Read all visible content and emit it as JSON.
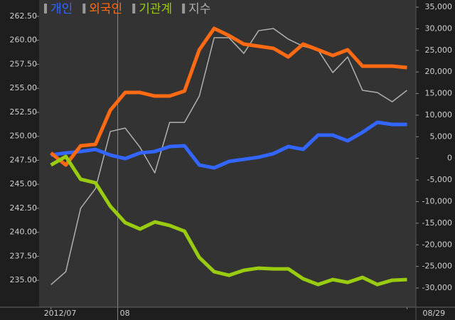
{
  "chart_data": {
    "type": "line",
    "x": [
      0,
      1,
      2,
      3,
      4,
      5,
      6,
      7,
      8,
      9,
      10,
      11,
      12,
      13,
      14,
      15,
      16,
      17,
      18,
      19,
      20,
      21,
      22,
      23,
      24
    ],
    "xlim": [
      -0.8,
      24.6
    ],
    "xticks": [
      {
        "value": 0,
        "label": "2012/07"
      },
      {
        "value": 4.5,
        "label": "08"
      },
      {
        "value": 24,
        "label": "08/29"
      }
    ],
    "ylim": [
      232.2,
      264.2
    ],
    "yticks": [
      {
        "value": 235,
        "label": "235.00"
      },
      {
        "value": 237.5,
        "label": "237.50"
      },
      {
        "value": 240,
        "label": "240.00"
      },
      {
        "value": 242.5,
        "label": "242.50"
      },
      {
        "value": 245,
        "label": "245.00"
      },
      {
        "value": 247.5,
        "label": "247.50"
      },
      {
        "value": 250,
        "label": "250.00"
      },
      {
        "value": 252.5,
        "label": "252.50"
      },
      {
        "value": 255,
        "label": "255.00"
      },
      {
        "value": 257.5,
        "label": "257.50"
      },
      {
        "value": 260,
        "label": "260.00"
      },
      {
        "value": 262.5,
        "label": "262.50"
      }
    ],
    "y2lim": [
      -34440,
      36650
    ],
    "y2ticks": [
      {
        "value": -30000,
        "label": "-30,000"
      },
      {
        "value": -25000,
        "label": "-25,000"
      },
      {
        "value": -20000,
        "label": "-20,000"
      },
      {
        "value": -15000,
        "label": "-15,000"
      },
      {
        "value": -10000,
        "label": "-10,000"
      },
      {
        "value": -5000,
        "label": "-5,000"
      },
      0,
      {
        "value": 5000,
        "label": "5,000"
      },
      {
        "value": 10000,
        "label": "10,000"
      },
      {
        "value": 15000,
        "label": "15,000"
      },
      {
        "value": 20000,
        "label": "20,000"
      },
      {
        "value": 25000,
        "label": "25,000"
      },
      {
        "value": 30000,
        "label": "30,000"
      },
      {
        "value": 35000,
        "label": "35,000"
      }
    ],
    "series": [
      {
        "name": "개인",
        "color": "#3366ff",
        "axis": "y2",
        "values": [
          770,
          1260,
          1590,
          2080,
          770,
          -60,
          1260,
          1590,
          2740,
          2910,
          -1540,
          -2200,
          -710,
          -220,
          270,
          1100,
          2740,
          2080,
          5380,
          5380,
          4060,
          6030,
          8340,
          7850,
          7850
        ]
      },
      {
        "name": "외국인",
        "color": "#ff6a13",
        "axis": "y2",
        "values": [
          1260,
          -1540,
          2910,
          3240,
          11140,
          15250,
          15250,
          14430,
          14430,
          15580,
          25130,
          30070,
          28420,
          26450,
          25950,
          25460,
          23480,
          26450,
          25130,
          23810,
          25130,
          21340,
          21340,
          21340,
          21010
        ]
      },
      {
        "name": "기관계",
        "color": "#99cc11",
        "axis": "y2",
        "values": [
          -1540,
          440,
          -4830,
          -5650,
          -11080,
          -14870,
          -16350,
          -14710,
          -15530,
          -16850,
          -22940,
          -26230,
          -27050,
          -25900,
          -25400,
          -25570,
          -25570,
          -27870,
          -29190,
          -28040,
          -28700,
          -27550,
          -29190,
          -28200,
          -28040
        ]
      },
      {
        "name": "지수",
        "color": "#b0b0b0",
        "values": [
          234.55,
          235.9,
          242.5,
          244.56,
          250.5,
          250.86,
          248.86,
          246.19,
          251.45,
          251.45,
          254.19,
          260.27,
          260.27,
          258.64,
          261.01,
          261.23,
          260.12,
          259.38,
          259.0,
          256.64,
          258.27,
          254.79,
          254.56,
          253.6,
          254.79
        ]
      }
    ]
  }
}
